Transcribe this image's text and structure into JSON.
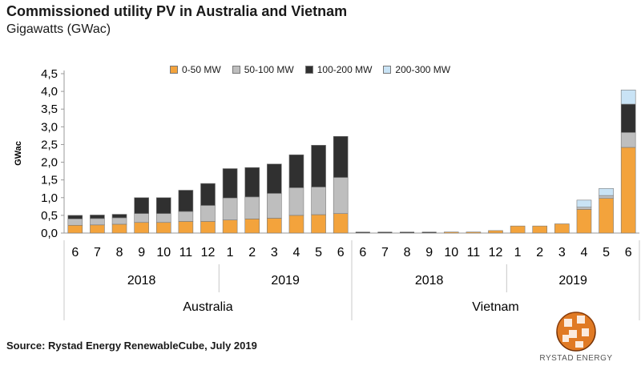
{
  "header": {
    "title": "Commissioned utility PV in Australia and Vietnam",
    "subtitle": "Gigawatts (GWac)"
  },
  "footer": {
    "source": "Source: Rystad Energy RenewableCube, July 2019"
  },
  "logo": {
    "text": "RYSTAD ENERGY",
    "icon": "rystad-globe-icon"
  },
  "chart_data": {
    "type": "bar",
    "stacked": true,
    "ylabel": "GWac",
    "ylim": [
      0,
      4.5
    ],
    "yticks": [
      "0,0",
      "0,5",
      "1,0",
      "1,5",
      "2,0",
      "2,5",
      "3,0",
      "3,5",
      "4,0",
      "4,5"
    ],
    "grid": false,
    "legend_position": "top",
    "categories": [
      "6",
      "7",
      "8",
      "9",
      "10",
      "11",
      "12",
      "1",
      "2",
      "3",
      "4",
      "5",
      "6",
      "6",
      "7",
      "8",
      "9",
      "10",
      "11",
      "12",
      "1",
      "2",
      "3",
      "4",
      "5",
      "6"
    ],
    "year_groups": [
      {
        "label": "2018",
        "start": 0,
        "end": 6
      },
      {
        "label": "2019",
        "start": 7,
        "end": 12
      },
      {
        "label": "2018",
        "start": 13,
        "end": 19
      },
      {
        "label": "2019",
        "start": 20,
        "end": 25
      }
    ],
    "country_groups": [
      {
        "label": "Australia",
        "start": 0,
        "end": 12
      },
      {
        "label": "Vietnam",
        "start": 13,
        "end": 25
      }
    ],
    "series": [
      {
        "name": "0-50 MW",
        "color": "#F3A33C",
        "values": [
          0.22,
          0.23,
          0.25,
          0.3,
          0.3,
          0.33,
          0.33,
          0.37,
          0.4,
          0.42,
          0.5,
          0.52,
          0.55,
          0.0,
          0.0,
          0.0,
          0.0,
          0.03,
          0.03,
          0.07,
          0.2,
          0.2,
          0.26,
          0.67,
          0.98,
          2.42
        ]
      },
      {
        "name": "50-100 MW",
        "color": "#BEBEBE",
        "values": [
          0.18,
          0.18,
          0.18,
          0.25,
          0.25,
          0.28,
          0.45,
          0.62,
          0.62,
          0.7,
          0.78,
          0.78,
          1.02,
          0.0,
          0.0,
          0.0,
          0.0,
          0.0,
          0.0,
          0.0,
          0.0,
          0.0,
          0.0,
          0.06,
          0.08,
          0.42
        ]
      },
      {
        "name": "100-200 MW",
        "color": "#303030",
        "values": [
          0.1,
          0.1,
          0.1,
          0.45,
          0.45,
          0.6,
          0.62,
          0.83,
          0.83,
          0.83,
          0.93,
          1.18,
          1.16,
          0.0,
          0.0,
          0.0,
          0.0,
          0.0,
          0.0,
          0.0,
          0.0,
          0.0,
          0.0,
          0.0,
          0.0,
          0.8
        ]
      },
      {
        "name": "200-300 MW",
        "color": "#C9E3F5",
        "values": [
          0,
          0,
          0,
          0,
          0,
          0,
          0,
          0,
          0,
          0,
          0,
          0,
          0,
          0,
          0,
          0,
          0,
          0,
          0,
          0,
          0,
          0,
          0,
          0.2,
          0.2,
          0.4
        ]
      }
    ]
  }
}
